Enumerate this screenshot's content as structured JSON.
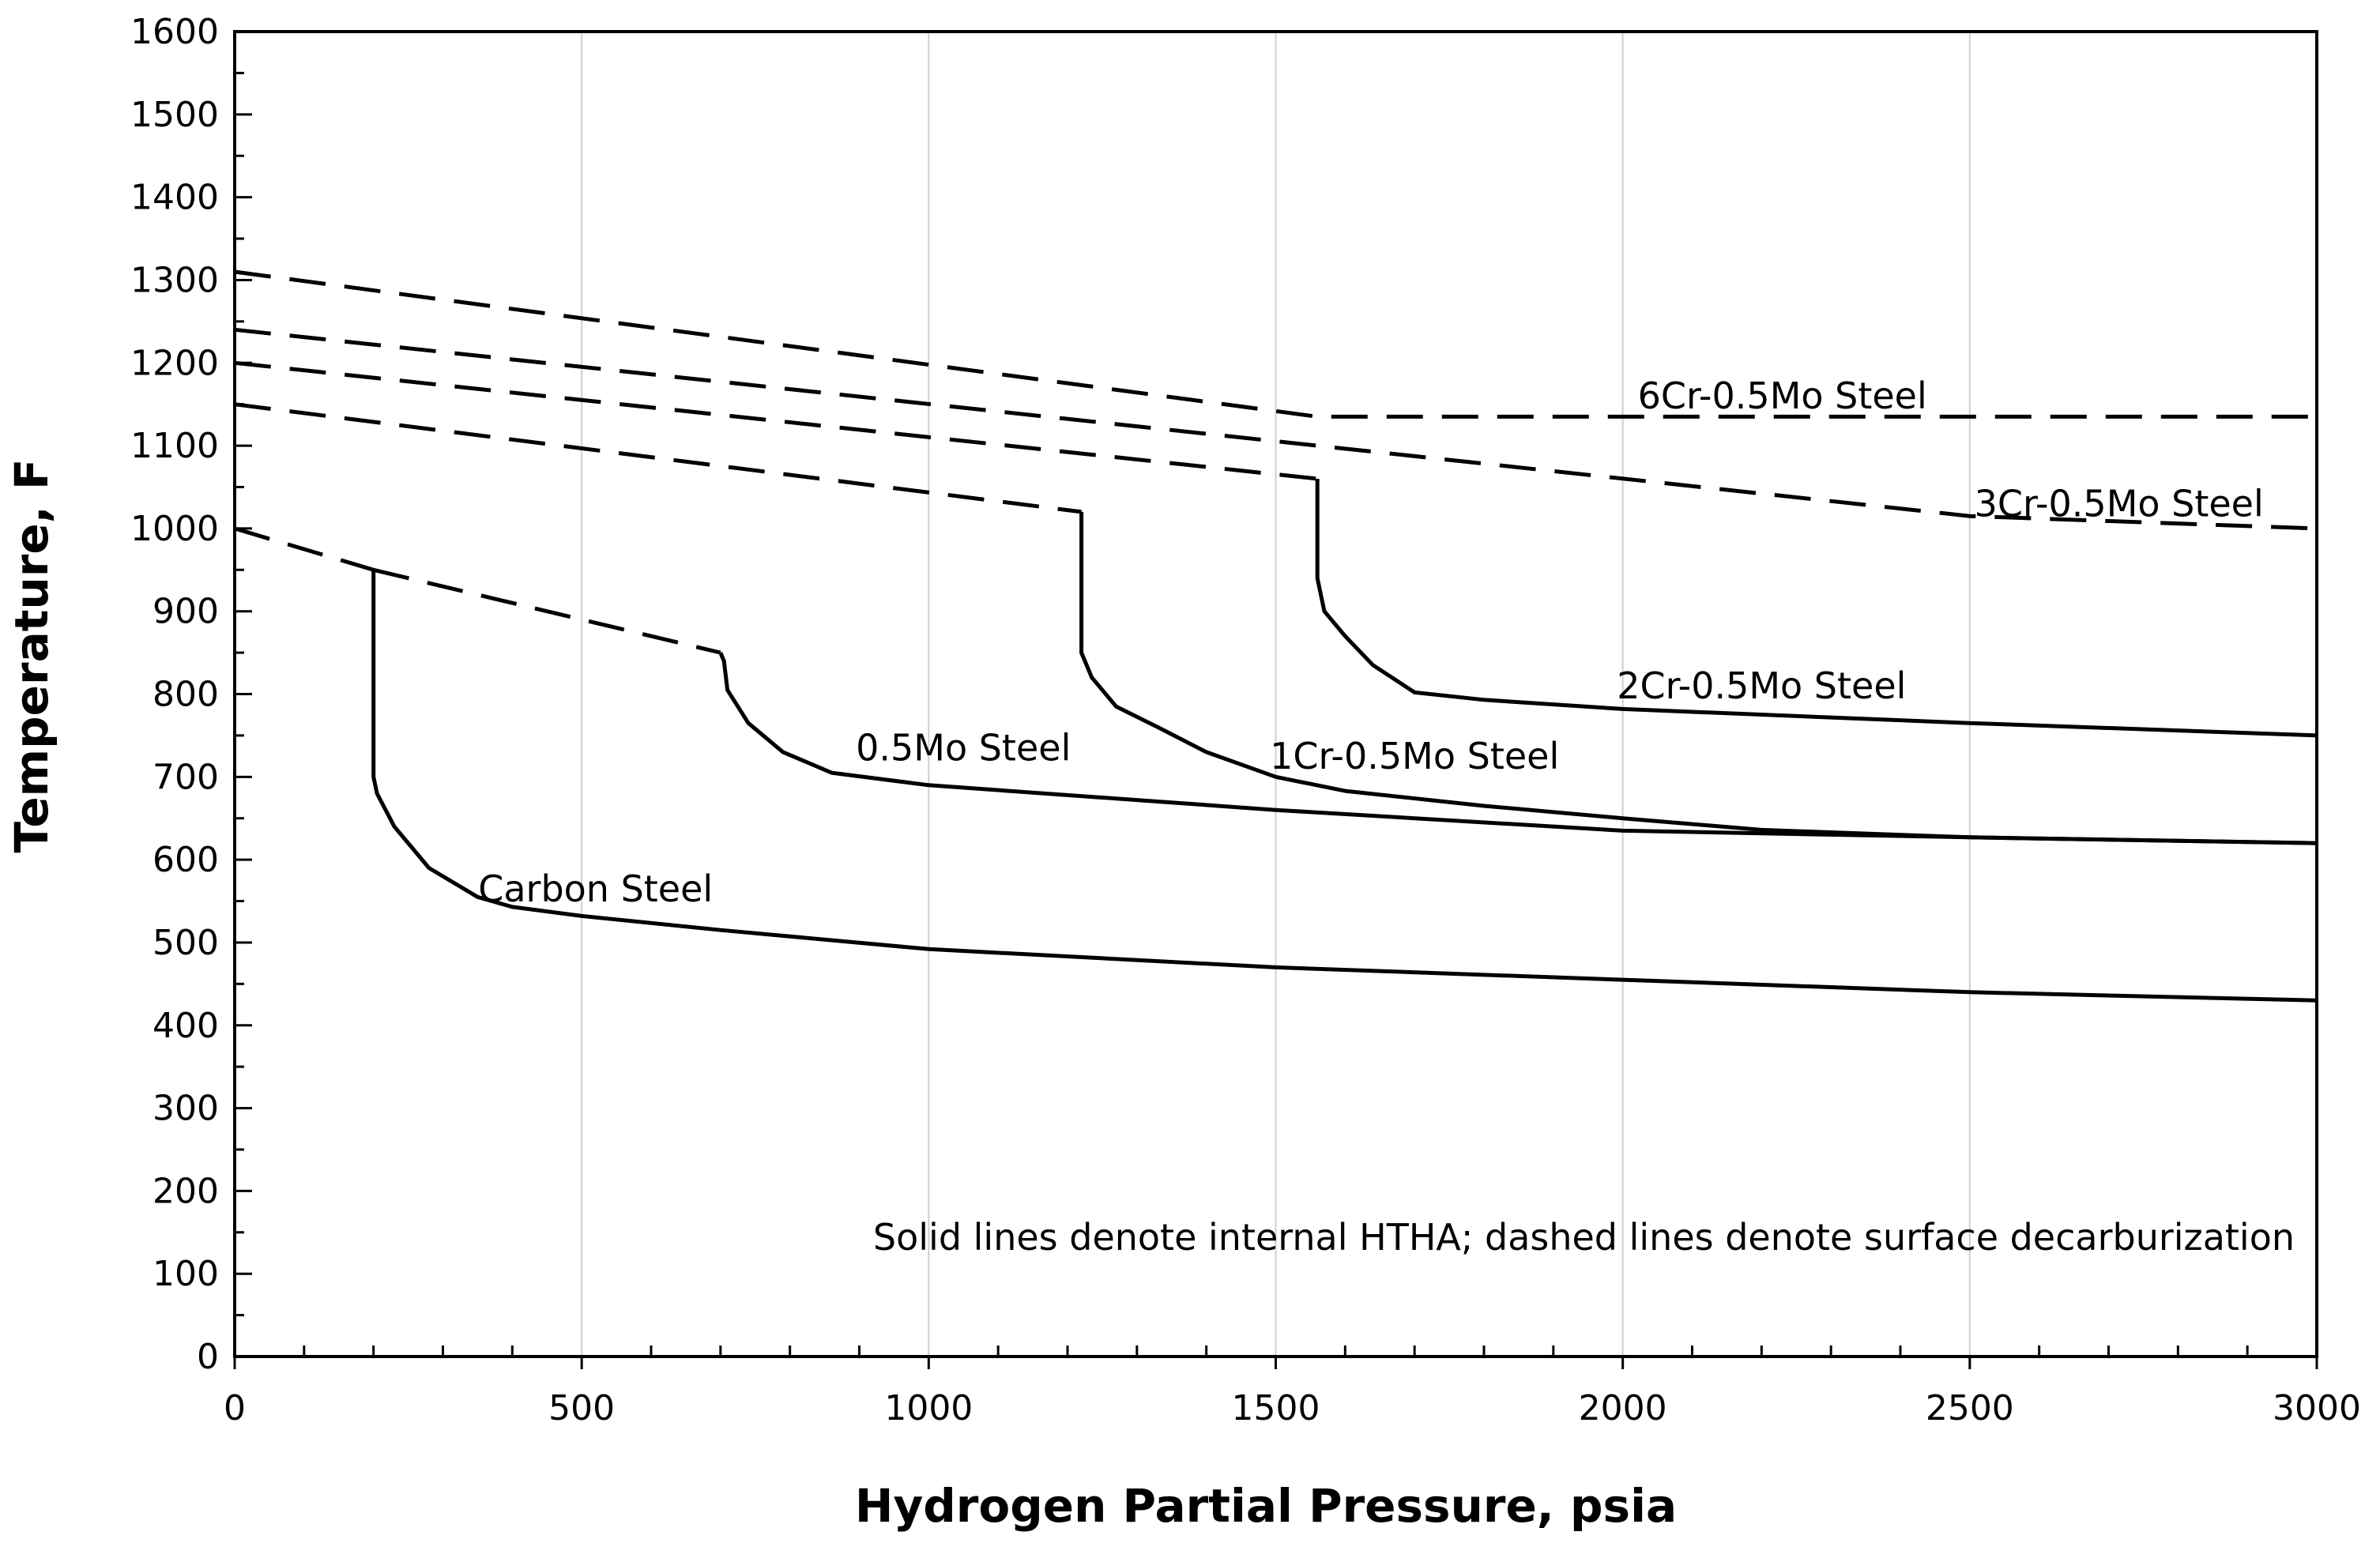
{
  "chart_data": {
    "type": "line",
    "title": "",
    "xlabel": "Hydrogen Partial Pressure, psia",
    "ylabel": "Temperature, F",
    "xlim": [
      0,
      3000
    ],
    "ylim": [
      0,
      1600
    ],
    "xticks": [
      0,
      500,
      1000,
      1500,
      2000,
      2500,
      3000
    ],
    "yticks": [
      0,
      100,
      200,
      300,
      400,
      500,
      600,
      700,
      800,
      900,
      1000,
      1100,
      1200,
      1300,
      1400,
      1500,
      1600
    ],
    "grid": "vertical",
    "note": "Solid lines denote internal HTHA; dashed lines denote surface decarburization",
    "series": [
      {
        "name": "Carbon Steel",
        "style": "solid",
        "points": [
          [
            200,
            950
          ],
          [
            200,
            700
          ],
          [
            205,
            680
          ],
          [
            230,
            640
          ],
          [
            280,
            590
          ],
          [
            350,
            555
          ],
          [
            400,
            543
          ],
          [
            500,
            532
          ],
          [
            700,
            515
          ],
          [
            1000,
            492
          ],
          [
            1500,
            470
          ],
          [
            2000,
            455
          ],
          [
            2500,
            440
          ],
          [
            3000,
            430
          ]
        ]
      },
      {
        "name": "Carbon Steel",
        "style": "dashed",
        "points": [
          [
            0,
            1000
          ],
          [
            200,
            950
          ]
        ]
      },
      {
        "name": "0.5Mo Steel",
        "style": "solid",
        "points": [
          [
            700,
            850
          ],
          [
            705,
            840
          ],
          [
            710,
            805
          ],
          [
            740,
            765
          ],
          [
            790,
            730
          ],
          [
            860,
            705
          ],
          [
            1000,
            690
          ],
          [
            1500,
            660
          ],
          [
            2000,
            635
          ],
          [
            2500,
            627
          ],
          [
            3000,
            620
          ]
        ]
      },
      {
        "name": "0.5Mo Steel",
        "style": "dashed",
        "points": [
          [
            200,
            950
          ],
          [
            700,
            850
          ]
        ]
      },
      {
        "name": "1Cr-0.5Mo Steel",
        "style": "solid",
        "points": [
          [
            1220,
            1020
          ],
          [
            1220,
            850
          ],
          [
            1235,
            820
          ],
          [
            1270,
            785
          ],
          [
            1330,
            760
          ],
          [
            1400,
            730
          ],
          [
            1500,
            700
          ],
          [
            1600,
            683
          ],
          [
            1800,
            665
          ],
          [
            2000,
            650
          ],
          [
            2200,
            636
          ],
          [
            2500,
            627
          ],
          [
            3000,
            620
          ]
        ]
      },
      {
        "name": "1Cr-0.5Mo Steel",
        "style": "dashed",
        "points": [
          [
            0,
            1150
          ],
          [
            1220,
            1020
          ]
        ]
      },
      {
        "name": "2Cr-0.5Mo Steel",
        "style": "solid",
        "points": [
          [
            1560,
            1060
          ],
          [
            1560,
            940
          ],
          [
            1570,
            900
          ],
          [
            1600,
            870
          ],
          [
            1640,
            835
          ],
          [
            1700,
            802
          ],
          [
            1800,
            793
          ],
          [
            2000,
            782
          ],
          [
            2500,
            765
          ],
          [
            3000,
            750
          ]
        ]
      },
      {
        "name": "2Cr-0.5Mo Steel",
        "style": "dashed",
        "points": [
          [
            0,
            1200
          ],
          [
            1560,
            1060
          ]
        ]
      },
      {
        "name": "3Cr-0.5Mo Steel",
        "style": "dashed",
        "points": [
          [
            0,
            1240
          ],
          [
            1560,
            1100
          ],
          [
            2500,
            1015
          ],
          [
            3000,
            1000
          ]
        ]
      },
      {
        "name": "6Cr-0.5Mo Steel",
        "style": "dashed",
        "points": [
          [
            0,
            1310
          ],
          [
            1560,
            1135
          ],
          [
            3000,
            1135
          ]
        ]
      }
    ],
    "labels": [
      {
        "text": "Carbon Steel",
        "x": 520,
        "y": 565
      },
      {
        "text": "0.5Mo Steel",
        "x": 1050,
        "y": 735
      },
      {
        "text": "1Cr-0.5Mo Steel",
        "x": 1700,
        "y": 725
      },
      {
        "text": "2Cr-0.5Mo Steel",
        "x": 2200,
        "y": 810
      },
      {
        "text": "3Cr-0.5Mo Steel",
        "x": 2715,
        "y": 1030
      },
      {
        "text": "6Cr-0.5Mo Steel",
        "x": 2230,
        "y": 1160
      }
    ]
  }
}
